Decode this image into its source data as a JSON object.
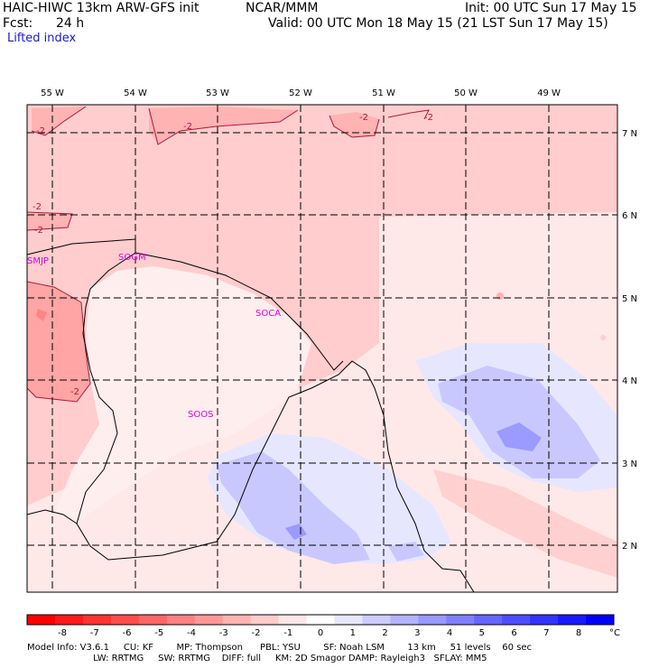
{
  "header": {
    "model": "HAIC-HIWC 13km ARW-GFS init",
    "org": "NCAR/MMM",
    "init": "Init: 00 UTC Sun 17 May 15",
    "fcst_label": "Fcst:",
    "fcst_value": "24 h",
    "valid": "Valid: 00 UTC Mon 18 May 15 (21 LST Sun 17 May 15)",
    "field": "Lifted index"
  },
  "map": {
    "lon_labels": [
      "55 W",
      "54 W",
      "53 W",
      "52 W",
      "51 W",
      "50 W",
      "49 W"
    ],
    "lat_labels": [
      "7 N",
      "6 N",
      "5 N",
      "4 N",
      "3 N",
      "2 N"
    ],
    "stations": [
      "SMJP",
      "SOGM",
      "SOCA",
      "SOOS"
    ],
    "contour_labels": [
      "-2",
      "-2",
      "-2",
      "-2",
      "-2",
      "-2",
      "-2"
    ],
    "colors": {
      "pos_light": "#ffe6e6",
      "pos_mid": "#ffc8c8",
      "pos_strong": "#ff9a9a",
      "neg_light": "#e6e6ff",
      "neg_mid": "#c8c8ff",
      "neg_strong": "#9a9aff",
      "station": "#e000e0"
    }
  },
  "colorbar": {
    "ticks": [
      "-8",
      "-7",
      "-6",
      "-5",
      "-4",
      "-3",
      "-2",
      "-1",
      "0",
      "1",
      "2",
      "3",
      "4",
      "5",
      "6",
      "7",
      "8"
    ],
    "unit": "°C",
    "colors": [
      "#ff0000",
      "#ff1a1a",
      "#ff3333",
      "#ff4d4d",
      "#ff6666",
      "#ff8080",
      "#ff9999",
      "#ffb3b3",
      "#ffcccc",
      "#ffe6e6",
      "#ffffff",
      "#e6e6ff",
      "#ccccff",
      "#b3b3ff",
      "#9999ff",
      "#8080ff",
      "#6666ff",
      "#4d4dff",
      "#3333ff",
      "#1a1aff",
      "#0000ff"
    ]
  },
  "footer": {
    "line1": "Model Info: V3.6.1     CU: KF        MP: Thompson      PBL: YSU        SF: Noah LSM        13 km     51 levels    60 sec",
    "line2": "                       LW: RRTMG     SW: RRTMG    DIFF: full     KM: 2D Smagor DAMP: Rayleigh3   SFLAY: MM5"
  }
}
